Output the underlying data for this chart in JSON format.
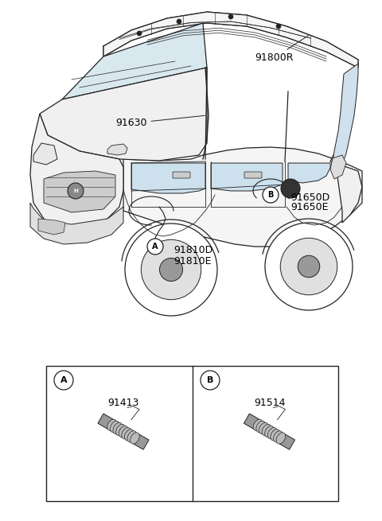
{
  "bg_color": "#ffffff",
  "line_color": "#1a1a1a",
  "label_91800R": "91800R",
  "label_91630": "91630",
  "label_91650D": "91650D",
  "label_91650E": "91650E",
  "label_91810D": "91810D",
  "label_91810E": "91810E",
  "box_A_label": "91413",
  "box_B_label": "91514",
  "car_color": "#ffffff",
  "car_stroke": "#222222",
  "gray_light": "#e0e0e0",
  "gray_mid": "#aaaaaa",
  "gray_dark": "#666666"
}
